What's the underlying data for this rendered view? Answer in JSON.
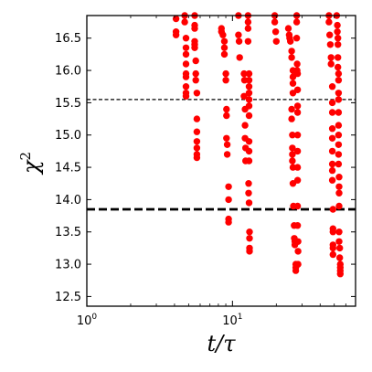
{
  "chart_data": {
    "type": "scatter",
    "title": "",
    "xlabel": "t/τ",
    "ylabel": "χ",
    "ylabel_superscript": "2",
    "x_scale": "log",
    "xlim": [
      1,
      70
    ],
    "ylim": [
      12.35,
      16.85
    ],
    "x_ticks": [
      {
        "value": 1,
        "base": "10",
        "exp": "0"
      },
      {
        "value": 10,
        "base": "10",
        "exp": "1"
      }
    ],
    "y_ticks": [
      "12.5",
      "13.0",
      "13.5",
      "14.0",
      "14.5",
      "15.0",
      "15.5",
      "16.0",
      "16.5"
    ],
    "ticks_inside": true,
    "grid": false,
    "legend": "none",
    "marker_color": "#ff0000",
    "reference_lines": [
      {
        "y": 15.55,
        "style": "dashed",
        "weight": "thin",
        "color": "#000000"
      },
      {
        "y": 13.85,
        "style": "dashed",
        "weight": "thick",
        "color": "#000000"
      }
    ],
    "series": [
      {
        "points": [
          [
            4.1,
            16.8
          ],
          [
            4.1,
            16.6
          ],
          [
            4.1,
            16.55
          ],
          [
            4.7,
            16.85
          ],
          [
            4.7,
            16.75
          ],
          [
            4.8,
            16.5
          ],
          [
            4.8,
            16.35
          ],
          [
            4.8,
            16.25
          ],
          [
            4.8,
            16.1
          ],
          [
            4.8,
            15.95
          ],
          [
            4.8,
            15.9
          ],
          [
            4.8,
            15.75
          ],
          [
            4.8,
            15.65
          ],
          [
            4.8,
            15.6
          ],
          [
            5.5,
            16.85
          ],
          [
            5.5,
            16.7
          ],
          [
            5.5,
            16.65
          ],
          [
            5.5,
            16.45
          ],
          [
            5.5,
            16.4
          ],
          [
            5.5,
            16.35
          ],
          [
            5.6,
            16.15
          ],
          [
            5.6,
            15.95
          ],
          [
            5.6,
            15.85
          ],
          [
            5.7,
            15.65
          ],
          [
            5.7,
            15.25
          ],
          [
            5.7,
            15.05
          ],
          [
            5.7,
            14.9
          ],
          [
            5.7,
            14.8
          ],
          [
            5.7,
            14.7
          ],
          [
            5.7,
            14.65
          ],
          [
            8.4,
            16.65
          ],
          [
            8.4,
            16.6
          ],
          [
            8.6,
            16.55
          ],
          [
            8.8,
            16.45
          ],
          [
            8.8,
            16.35
          ],
          [
            8.8,
            16.25
          ],
          [
            9.0,
            15.95
          ],
          [
            9.0,
            15.85
          ],
          [
            9.1,
            15.4
          ],
          [
            9.1,
            15.3
          ],
          [
            9.1,
            14.95
          ],
          [
            9.2,
            14.85
          ],
          [
            9.2,
            14.7
          ],
          [
            9.4,
            14.2
          ],
          [
            9.4,
            14.0
          ],
          [
            9.4,
            13.7
          ],
          [
            9.4,
            13.65
          ],
          [
            11.0,
            16.85
          ],
          [
            11.0,
            16.55
          ],
          [
            11.1,
            16.45
          ],
          [
            11.2,
            16.2
          ],
          [
            12.0,
            15.95
          ],
          [
            12.1,
            15.85
          ],
          [
            12.0,
            15.6
          ],
          [
            12.2,
            15.4
          ],
          [
            12.2,
            15.15
          ],
          [
            12.2,
            14.95
          ],
          [
            12.3,
            14.8
          ],
          [
            12.3,
            14.6
          ],
          [
            12.8,
            16.85
          ],
          [
            12.8,
            16.75
          ],
          [
            12.8,
            16.65
          ],
          [
            12.8,
            16.45
          ],
          [
            13.0,
            15.95
          ],
          [
            13.0,
            15.85
          ],
          [
            13.0,
            15.75
          ],
          [
            13.0,
            15.65
          ],
          [
            13.0,
            15.55
          ],
          [
            13.0,
            15.45
          ],
          [
            13.0,
            15.3
          ],
          [
            13.0,
            14.9
          ],
          [
            13.0,
            14.75
          ],
          [
            13.0,
            14.6
          ],
          [
            12.9,
            14.25
          ],
          [
            12.9,
            14.1
          ],
          [
            13.0,
            13.95
          ],
          [
            13.1,
            13.5
          ],
          [
            13.1,
            13.4
          ],
          [
            13.1,
            13.25
          ],
          [
            13.1,
            13.2
          ],
          [
            19.5,
            16.85
          ],
          [
            19.5,
            16.75
          ],
          [
            19.8,
            16.6
          ],
          [
            20.0,
            16.45
          ],
          [
            24.2,
            16.65
          ],
          [
            24.5,
            16.55
          ],
          [
            24.7,
            16.5
          ],
          [
            25.0,
            16.45
          ],
          [
            25.5,
            16.3
          ],
          [
            25.5,
            16.2
          ],
          [
            26.0,
            16.0
          ],
          [
            26.0,
            15.9
          ],
          [
            26.0,
            15.8
          ],
          [
            26.0,
            15.65
          ],
          [
            25.5,
            15.4
          ],
          [
            25.5,
            15.25
          ],
          [
            25.8,
            15.0
          ],
          [
            25.8,
            14.8
          ],
          [
            25.8,
            14.7
          ],
          [
            25.8,
            14.6
          ],
          [
            26.0,
            14.5
          ],
          [
            26.0,
            14.25
          ],
          [
            26.2,
            13.9
          ],
          [
            26.5,
            13.6
          ],
          [
            26.6,
            13.4
          ],
          [
            26.8,
            13.35
          ],
          [
            26.8,
            13.3
          ],
          [
            27.2,
            13.0
          ],
          [
            27.2,
            12.95
          ],
          [
            27.2,
            12.9
          ],
          [
            27.6,
            16.85
          ],
          [
            27.6,
            16.75
          ],
          [
            27.6,
            16.5
          ],
          [
            27.8,
            16.1
          ],
          [
            27.8,
            16.0
          ],
          [
            28.0,
            15.95
          ],
          [
            28.0,
            15.7
          ],
          [
            28.0,
            15.45
          ],
          [
            28.0,
            15.35
          ],
          [
            28.0,
            15.0
          ],
          [
            28.0,
            14.75
          ],
          [
            28.0,
            14.5
          ],
          [
            28.0,
            14.3
          ],
          [
            28.0,
            13.9
          ],
          [
            28.0,
            13.6
          ],
          [
            28.2,
            13.35
          ],
          [
            28.2,
            13.2
          ],
          [
            28.2,
            13.0
          ],
          [
            46.0,
            16.85
          ],
          [
            46.0,
            16.75
          ],
          [
            46.5,
            16.55
          ],
          [
            47.0,
            16.4
          ],
          [
            47.5,
            16.2
          ],
          [
            47.5,
            16.1
          ],
          [
            48.5,
            15.75
          ],
          [
            48.5,
            15.5
          ],
          [
            48.5,
            15.35
          ],
          [
            48.5,
            15.1
          ],
          [
            48.5,
            14.95
          ],
          [
            48.5,
            14.75
          ],
          [
            48.5,
            14.55
          ],
          [
            48.5,
            14.45
          ],
          [
            48.5,
            14.3
          ],
          [
            49.0,
            13.85
          ],
          [
            49.0,
            13.55
          ],
          [
            49.0,
            13.5
          ],
          [
            49.0,
            13.3
          ],
          [
            49.0,
            13.25
          ],
          [
            49.0,
            13.15
          ],
          [
            52.0,
            16.85
          ],
          [
            52.5,
            16.7
          ],
          [
            52.5,
            16.6
          ],
          [
            53.0,
            16.5
          ],
          [
            53.0,
            16.4
          ],
          [
            53.0,
            16.2
          ],
          [
            53.0,
            16.05
          ],
          [
            53.5,
            15.95
          ],
          [
            53.5,
            15.85
          ],
          [
            53.5,
            15.65
          ],
          [
            53.5,
            15.55
          ],
          [
            53.5,
            15.35
          ],
          [
            53.5,
            15.15
          ],
          [
            53.5,
            15.0
          ],
          [
            53.5,
            14.85
          ],
          [
            53.5,
            14.7
          ],
          [
            53.5,
            14.55
          ],
          [
            54.0,
            14.35
          ],
          [
            54.0,
            14.2
          ],
          [
            54.0,
            14.1
          ],
          [
            54.0,
            13.9
          ],
          [
            54.0,
            13.5
          ],
          [
            54.0,
            13.35
          ],
          [
            54.5,
            13.25
          ],
          [
            54.5,
            13.1
          ],
          [
            55.0,
            13.0
          ],
          [
            55.0,
            12.95
          ],
          [
            55.0,
            12.9
          ],
          [
            55.0,
            12.85
          ]
        ]
      }
    ]
  }
}
